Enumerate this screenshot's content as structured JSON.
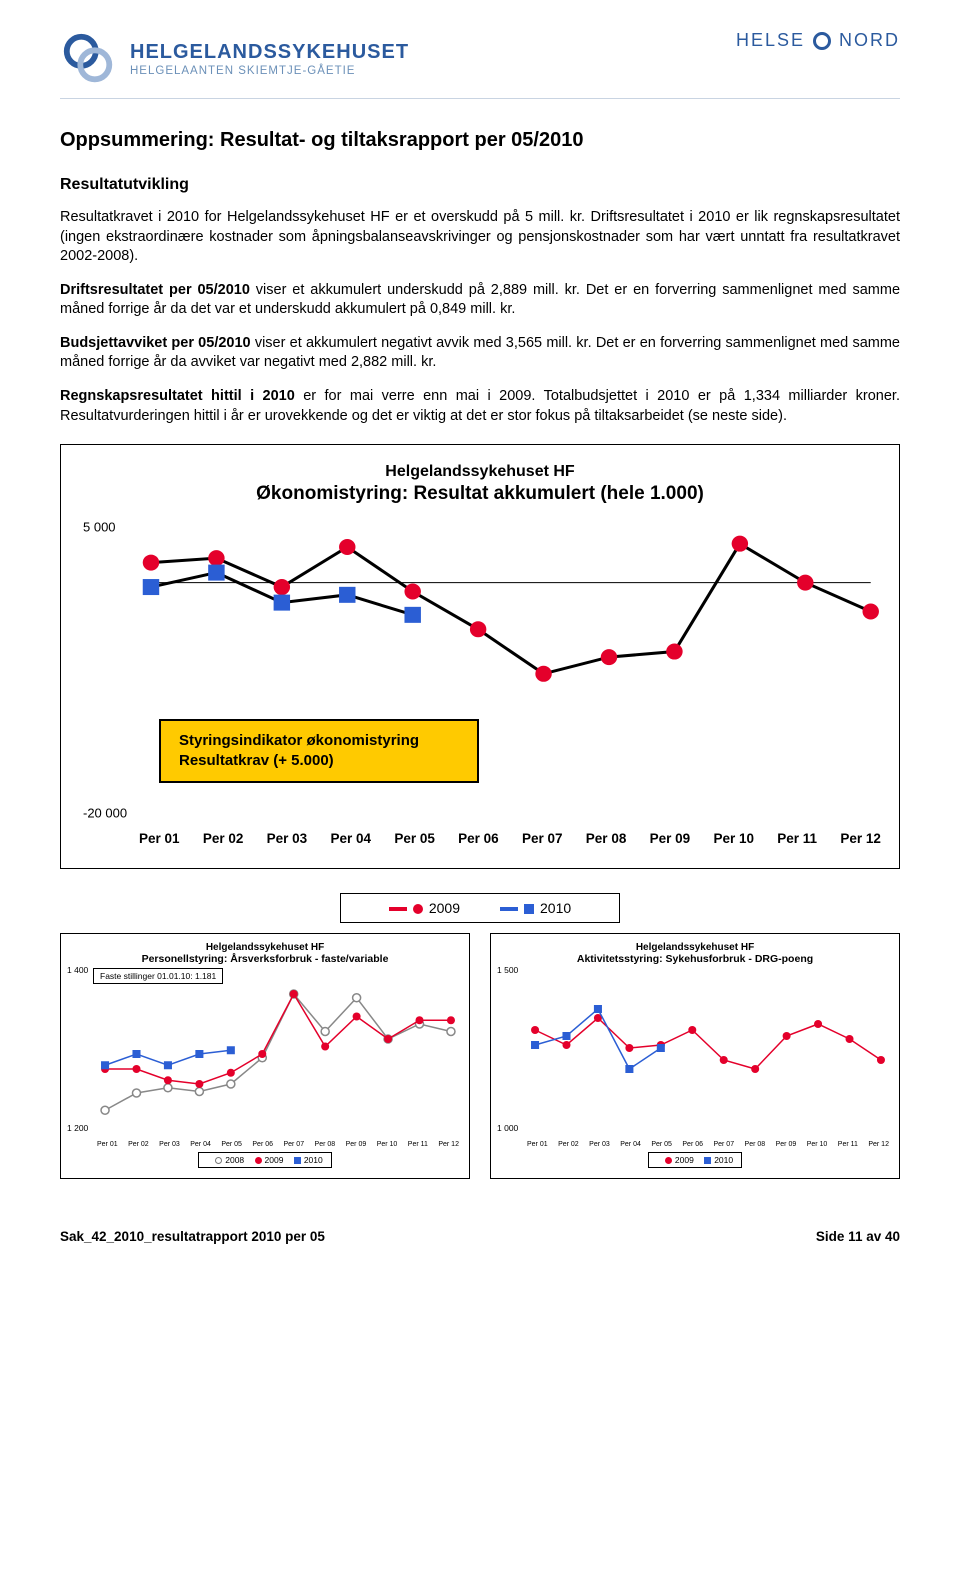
{
  "header": {
    "org_main": "HELGELANDSSYKEHUSET",
    "org_sub": "HELGELAANTEN SKIEMTJE-GÅETIE",
    "right_1": "HELSE",
    "right_2": "NORD"
  },
  "title": "Oppsummering: Resultat- og tiltaksrapport per 05/2010",
  "subheading": "Resultatutvikling",
  "para1": "Resultatkravet i 2010 for Helgelandssykehuset HF er et overskudd på 5 mill. kr. Driftsresultatet i 2010 er lik regnskapsresultatet (ingen ekstraordinære kostnader som åpningsbalanseavskrivinger og pensjonskostnader som har vært unntatt fra resultatkravet 2002-2008).",
  "para2_lead": "Driftsresultatet per 05/2010",
  "para2_rest": " viser et akkumulert underskudd på 2,889 mill. kr. Det er en forverring sammenlignet med samme måned forrige år da det var et underskudd akkumulert på 0,849 mill. kr.",
  "para3_lead": "Budsjettavviket per 05/2010",
  "para3_rest": " viser et akkumulert negativt avvik med 3,565 mill. kr. Det er en forverring sammenlignet med samme måned forrige år da avviket var negativt med 2,882 mill. kr.",
  "para4_lead": "Regnskapsresultatet hittil i 2010",
  "para4_rest": " er for mai verre enn mai i 2009. Totalbudsjettet i 2010 er på 1,334 milliarder kroner. Resultatvurderingen hittil i år er urovekkende og det er viktig at det er stor fokus på tiltaksarbeidet (se neste side).",
  "main_chart": {
    "type": "line",
    "title1": "Helgelandssykehuset HF",
    "title2": "Økonomistyring: Resultat akkumulert (hele 1.000)",
    "ylim": [
      -20000,
      5000
    ],
    "yticks": [
      "5 000",
      "-20 000"
    ],
    "categories": [
      "Per 01",
      "Per 02",
      "Per 03",
      "Per 04",
      "Per 05",
      "Per 06",
      "Per 07",
      "Per 08",
      "Per 09",
      "Per 10",
      "Per 11",
      "Per 12"
    ],
    "series": [
      {
        "name": "2009",
        "color": "#e4002b",
        "marker": "circle",
        "values": [
          1800,
          2200,
          -400,
          3200,
          -800,
          -4200,
          -8200,
          -6700,
          -6200,
          3500,
          0,
          -2600
        ]
      },
      {
        "name": "2010",
        "color": "#2b5ed4",
        "marker": "square",
        "values": [
          -400,
          900,
          -1800,
          -1100,
          -2900,
          null,
          null,
          null,
          null,
          null,
          null,
          null
        ]
      }
    ],
    "line_color": "#000000",
    "line_width": 3,
    "marker_size": 9,
    "legend_box": {
      "bg": "#ffca00",
      "line1": "Styringsindikator økonomistyring",
      "line2": "Resultatkrav (+ 5.000)"
    },
    "legend_series": [
      "2009",
      "2010"
    ]
  },
  "small_chart_left": {
    "type": "line",
    "title1": "Helgelandssykehuset HF",
    "title2": "Personellstyring: Årsverksforbruk - faste/variable",
    "box_label": "Faste stillinger 01.01.10: 1.181",
    "ylim": [
      1200,
      1400
    ],
    "yticks": [
      "1 400",
      "1 200"
    ],
    "categories": [
      "Per 01",
      "Per 02",
      "Per 03",
      "Per 04",
      "Per 05",
      "Per 06",
      "Per 07",
      "Per 08",
      "Per 09",
      "Per 10",
      "Per 11",
      "Per 12"
    ],
    "series": [
      {
        "name": "2008",
        "color": "#888888",
        "marker": "circle-open",
        "values": [
          1225,
          1248,
          1255,
          1250,
          1260,
          1295,
          1380,
          1330,
          1375,
          1320,
          1340,
          1330
        ]
      },
      {
        "name": "2009",
        "color": "#e4002b",
        "marker": "circle",
        "values": [
          1280,
          1280,
          1265,
          1260,
          1275,
          1300,
          1380,
          1310,
          1350,
          1320,
          1345,
          1345
        ]
      },
      {
        "name": "2010",
        "color": "#2b5ed4",
        "marker": "square",
        "values": [
          1285,
          1300,
          1285,
          1300,
          1305,
          null,
          null,
          null,
          null,
          null,
          null,
          null
        ]
      }
    ],
    "legend": [
      "2008",
      "2009",
      "2010"
    ]
  },
  "small_chart_right": {
    "type": "line",
    "title1": "Helgelandssykehuset HF",
    "title2": "Aktivitetsstyring: Sykehusforbruk - DRG-poeng",
    "ylim": [
      1000,
      1500
    ],
    "yticks": [
      "1 500",
      "1 000"
    ],
    "categories": [
      "Per 01",
      "Per 02",
      "Per 03",
      "Per 04",
      "Per 05",
      "Per 06",
      "Per 07",
      "Per 08",
      "Per 09",
      "Per 10",
      "Per 11",
      "Per 12"
    ],
    "series": [
      {
        "name": "2009",
        "color": "#e4002b",
        "marker": "circle",
        "values": [
          1330,
          1280,
          1370,
          1270,
          1280,
          1330,
          1230,
          1200,
          1310,
          1350,
          1300,
          1230
        ]
      },
      {
        "name": "2010",
        "color": "#2b5ed4",
        "marker": "square",
        "values": [
          1280,
          1310,
          1400,
          1200,
          1270,
          null,
          null,
          null,
          null,
          null,
          null,
          null
        ]
      }
    ],
    "legend": [
      "2009",
      "2010"
    ]
  },
  "footer": {
    "left": "Sak_42_2010_resultatrapport 2010 per 05",
    "right": "Side 11 av 40"
  },
  "colors": {
    "red": "#e4002b",
    "blue": "#2b5ed4",
    "grey": "#888888",
    "yellow": "#ffca00",
    "logo_blue": "#2b5a9e",
    "logo_light": "#6b90b8"
  }
}
